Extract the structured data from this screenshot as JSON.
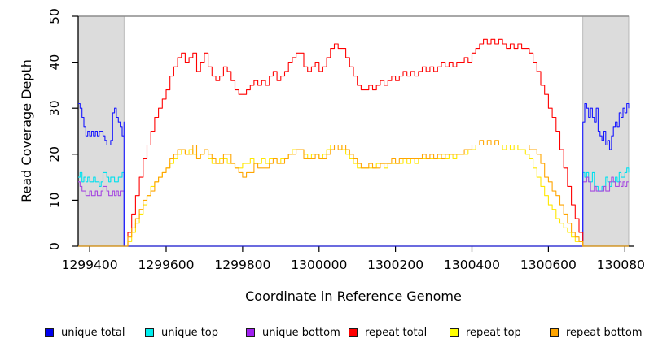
{
  "chart_data": {
    "type": "line",
    "title": "",
    "xlabel": "Coordinate in Reference Genome",
    "ylabel": "Read Coverage Depth",
    "xlim": [
      1299370,
      1300810
    ],
    "ylim": [
      0,
      50
    ],
    "x_ticks": [
      1299400,
      1299600,
      1299800,
      1300000,
      1300200,
      1300400,
      1300600,
      1300800
    ],
    "y_ticks": [
      0,
      10,
      20,
      30,
      40,
      50
    ],
    "grid": false,
    "legend_position": "bottom",
    "shaded_regions": {
      "color": "#dcdcdc",
      "border": "#ababab",
      "x_ranges": [
        [
          1299370,
          1299490
        ],
        [
          1300690,
          1300810
        ]
      ]
    },
    "top_line": {
      "y": 50,
      "color": "#8c8c8c"
    },
    "series": [
      {
        "name": "unique top",
        "color": "#00e0ee",
        "segments": [
          {
            "x0": 1299370,
            "dx": 5,
            "values": [
              15,
              16,
              14,
              15,
              14,
              15,
              14,
              14,
              15,
              14,
              14,
              13,
              14,
              16,
              16,
              15,
              14,
              15,
              15,
              14,
              14,
              15,
              15,
              16,
              15
            ]
          },
          {
            "x0": 1299490,
            "dx": 1200,
            "values": [
              0,
              0
            ]
          },
          {
            "x0": 1300690,
            "dx": 5,
            "values": [
              16,
              15,
              16,
              14,
              14,
              16,
              13,
              13,
              12,
              12,
              13,
              13,
              15,
              14,
              13,
              14,
              14,
              15,
              14,
              16,
              15,
              15,
              16,
              17,
              16
            ]
          }
        ]
      },
      {
        "name": "unique bottom",
        "color": "#a64ae0",
        "segments": [
          {
            "x0": 1299370,
            "dx": 5,
            "values": [
              14,
              13,
              12,
              12,
              11,
              11,
              12,
              11,
              11,
              12,
              11,
              11,
              12,
              13,
              13,
              12,
              11,
              11,
              12,
              11,
              12,
              11,
              12,
              12,
              12
            ]
          },
          {
            "x0": 1299490,
            "dx": 1200,
            "values": [
              0,
              0
            ]
          },
          {
            "x0": 1300690,
            "dx": 5,
            "values": [
              14,
              14,
              15,
              14,
              12,
              12,
              13,
              12,
              12,
              12,
              12,
              13,
              12,
              12,
              14,
              15,
              14,
              13,
              13,
              14,
              13,
              14,
              13,
              14,
              14
            ]
          }
        ]
      },
      {
        "name": "unique total",
        "color": "#1717ff",
        "segments": [
          {
            "x0": 1299370,
            "dx": 5,
            "values": [
              31,
              30,
              28,
              26,
              24,
              25,
              24,
              25,
              24,
              25,
              24,
              25,
              25,
              24,
              23,
              22,
              22,
              23,
              29,
              30,
              28,
              27,
              26,
              24,
              27
            ]
          },
          {
            "x0": 1299490,
            "dx": 1200,
            "values": [
              0,
              0
            ]
          },
          {
            "x0": 1300690,
            "dx": 5,
            "values": [
              27,
              31,
              30,
              28,
              30,
              28,
              27,
              30,
              25,
              24,
              23,
              25,
              22,
              23,
              21,
              24,
              26,
              27,
              26,
              29,
              28,
              30,
              29,
              31,
              30
            ]
          }
        ]
      },
      {
        "name": "repeat total",
        "color": "#ff0000",
        "segments": [
          {
            "x0": 1299370,
            "dx": 120,
            "values": [
              0,
              0
            ]
          },
          {
            "x0": 1299490,
            "dx": 10,
            "values": [
              0,
              3,
              7,
              11,
              15,
              19,
              22,
              25,
              28,
              30,
              32,
              34,
              37,
              39,
              41,
              42,
              40,
              41,
              42,
              38,
              40,
              42,
              39,
              37,
              36,
              37,
              39,
              38,
              36,
              34,
              33,
              33,
              34,
              35,
              36,
              35,
              36,
              35,
              37,
              38,
              36,
              37,
              38,
              40,
              41,
              42,
              42,
              39,
              38,
              39,
              40,
              38,
              39,
              41,
              43,
              44,
              43,
              43,
              41,
              39,
              37,
              35,
              34,
              34,
              35,
              34,
              35,
              36,
              35,
              36,
              37,
              36,
              37,
              38,
              37,
              38,
              37,
              38,
              39,
              38,
              39,
              38,
              39,
              40,
              39,
              40,
              39,
              40,
              40,
              41,
              40,
              42,
              43,
              44,
              45,
              44,
              45,
              44,
              45,
              44,
              43,
              44,
              43,
              44,
              43,
              43,
              42,
              40,
              38,
              35,
              33,
              30,
              28,
              25,
              21,
              17,
              13,
              9,
              6,
              3,
              0
            ]
          },
          {
            "x0": 1300690,
            "dx": 120,
            "values": [
              0,
              0
            ]
          }
        ]
      },
      {
        "name": "repeat top",
        "color": "#ffe800",
        "segments": [
          {
            "x0": 1299370,
            "dx": 120,
            "values": [
              0,
              0
            ]
          },
          {
            "x0": 1299490,
            "dx": 10,
            "values": [
              0,
              1,
              3,
              5,
              7,
              9,
              11,
              13,
              14,
              15,
              16,
              17,
              18,
              19,
              20,
              21,
              20,
              21,
              20,
              19,
              20,
              21,
              19,
              18,
              18,
              19,
              19,
              18,
              18,
              17,
              17,
              18,
              18,
              19,
              18,
              18,
              19,
              18,
              19,
              19,
              18,
              19,
              19,
              20,
              21,
              21,
              21,
              20,
              19,
              20,
              20,
              19,
              20,
              21,
              22,
              22,
              22,
              21,
              20,
              19,
              18,
              17,
              17,
              17,
              17,
              17,
              18,
              18,
              17,
              18,
              18,
              18,
              18,
              19,
              18,
              19,
              18,
              19,
              19,
              19,
              19,
              19,
              19,
              20,
              19,
              20,
              19,
              20,
              20,
              20,
              21,
              21,
              22,
              22,
              22,
              22,
              22,
              22,
              22,
              21,
              22,
              21,
              22,
              21,
              21,
              20,
              19,
              17,
              15,
              13,
              11,
              9,
              8,
              6,
              5,
              4,
              3,
              2,
              1,
              1,
              0
            ]
          },
          {
            "x0": 1300690,
            "dx": 120,
            "values": [
              0,
              0
            ]
          }
        ]
      },
      {
        "name": "repeat bottom",
        "color": "#ffa500",
        "segments": [
          {
            "x0": 1299370,
            "dx": 120,
            "values": [
              0,
              0
            ]
          },
          {
            "x0": 1299490,
            "dx": 10,
            "values": [
              0,
              2,
              4,
              6,
              8,
              10,
              11,
              12,
              14,
              15,
              16,
              17,
              19,
              20,
              21,
              21,
              20,
              20,
              22,
              19,
              20,
              21,
              20,
              19,
              18,
              18,
              20,
              20,
              18,
              17,
              16,
              15,
              16,
              16,
              18,
              17,
              17,
              17,
              18,
              19,
              18,
              18,
              19,
              20,
              20,
              21,
              21,
              19,
              19,
              19,
              20,
              19,
              19,
              20,
              21,
              22,
              21,
              22,
              21,
              20,
              19,
              18,
              17,
              17,
              18,
              17,
              17,
              18,
              18,
              18,
              19,
              18,
              19,
              19,
              19,
              19,
              19,
              19,
              20,
              19,
              20,
              19,
              20,
              19,
              20,
              20,
              20,
              20,
              20,
              21,
              21,
              22,
              22,
              23,
              22,
              23,
              22,
              23,
              22,
              22,
              22,
              22,
              22,
              22,
              22,
              22,
              21,
              21,
              20,
              18,
              15,
              14,
              12,
              11,
              9,
              7,
              5,
              3,
              2,
              1,
              0
            ]
          },
          {
            "x0": 1300690,
            "dx": 120,
            "values": [
              0,
              0
            ]
          }
        ]
      }
    ]
  },
  "legend": {
    "items": [
      {
        "label": "unique total",
        "color": "#0000ee"
      },
      {
        "label": "unique top",
        "color": "#00eeee"
      },
      {
        "label": "unique bottom",
        "color": "#a020f0"
      },
      {
        "label": "repeat total",
        "color": "#ff0000"
      },
      {
        "label": "repeat top",
        "color": "#ffff00"
      },
      {
        "label": "repeat bottom",
        "color": "#ffa500"
      }
    ]
  }
}
